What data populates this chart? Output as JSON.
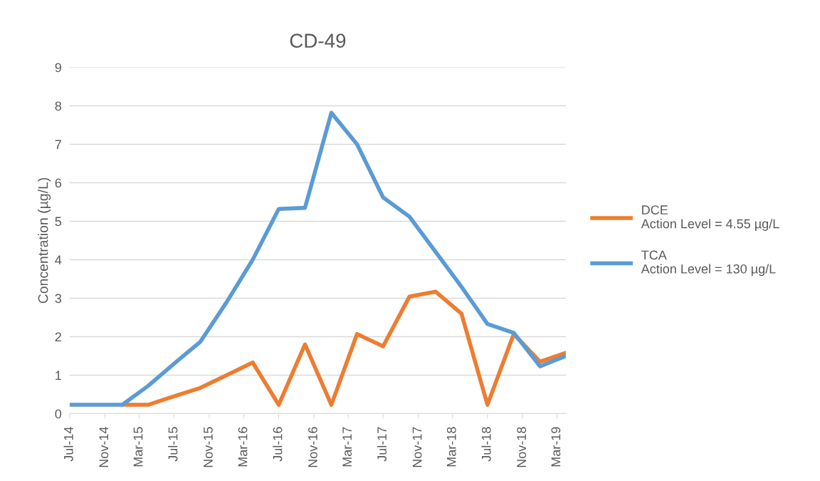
{
  "chart_data": {
    "type": "line",
    "title": "CD-49",
    "ylabel": "Concentration (µg/L)",
    "x": [
      "2014-07",
      "2015-01",
      "2015-04",
      "2015-07",
      "2015-10",
      "2016-01",
      "2016-04",
      "2016-07",
      "2016-10",
      "2017-01",
      "2017-04",
      "2017-07",
      "2017-10",
      "2018-01",
      "2018-04",
      "2018-07",
      "2018-10",
      "2019-01",
      "2019-04"
    ],
    "series": [
      {
        "name": "DCE\nAction Level = 4.55 µg/L",
        "color": "#ed7d31",
        "values": [
          null,
          0.23,
          0.23,
          0.45,
          0.67,
          1.0,
          1.33,
          0.23,
          1.8,
          0.23,
          2.07,
          1.75,
          3.04,
          3.17,
          2.6,
          0.23,
          2.07,
          1.35,
          1.58
        ]
      },
      {
        "name": "TCA\nAction Level = 130 µg/L",
        "color": "#5b9bd5",
        "values": [
          0.23,
          0.23,
          0.72,
          1.3,
          1.87,
          2.9,
          4.0,
          5.32,
          5.35,
          7.82,
          7.0,
          5.62,
          5.12,
          4.2,
          3.3,
          2.33,
          2.1,
          1.23,
          1.5
        ]
      }
    ],
    "xlim": [
      "2014-07",
      "2019-04"
    ],
    "xticks": [
      {
        "value": "2014-07",
        "label": "Jul-14"
      },
      {
        "value": "2014-11",
        "label": "Nov-14"
      },
      {
        "value": "2015-03",
        "label": "Mar-15"
      },
      {
        "value": "2015-07",
        "label": "Jul-15"
      },
      {
        "value": "2015-11",
        "label": "Nov-15"
      },
      {
        "value": "2016-03",
        "label": "Mar-16"
      },
      {
        "value": "2016-07",
        "label": "Jul-16"
      },
      {
        "value": "2016-11",
        "label": "Nov-16"
      },
      {
        "value": "2017-03",
        "label": "Mar-17"
      },
      {
        "value": "2017-07",
        "label": "Jul-17"
      },
      {
        "value": "2017-11",
        "label": "Nov-17"
      },
      {
        "value": "2018-03",
        "label": "Mar-18"
      },
      {
        "value": "2018-07",
        "label": "Jul-18"
      },
      {
        "value": "2018-11",
        "label": "Nov-18"
      },
      {
        "value": "2019-03",
        "label": "Mar-19"
      }
    ],
    "ylim": [
      0,
      9
    ],
    "yticks": [
      0,
      1,
      2,
      3,
      4,
      5,
      6,
      7,
      8,
      9
    ],
    "grid": "y",
    "legend": "right",
    "marker": "none",
    "line_style": "solid"
  }
}
